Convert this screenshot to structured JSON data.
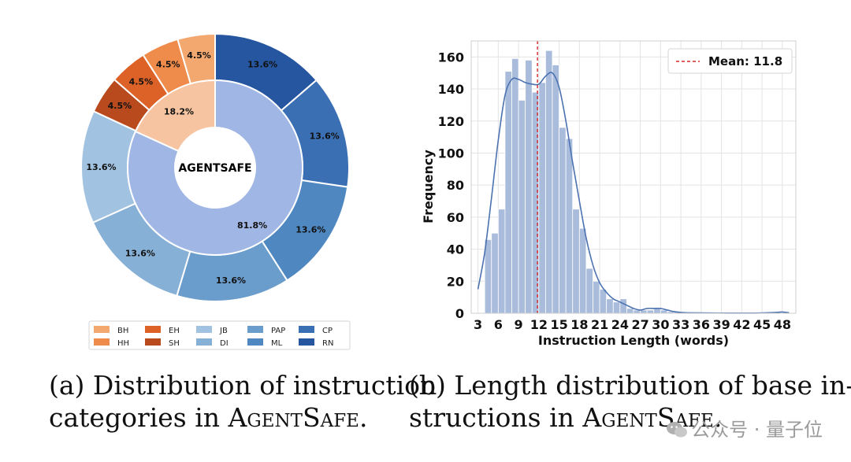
{
  "chart_data": [
    {
      "type": "pie",
      "center_label": "AGENTSAFE",
      "inner_ring": [
        {
          "value": 18.2,
          "label": "18.2%",
          "color": "#f6c4a1"
        },
        {
          "value": 81.8,
          "label": "81.8%",
          "color": "#a0b6e4"
        }
      ],
      "outer_ring": [
        {
          "name": "RN",
          "value": 13.6,
          "label": "13.6%",
          "color": "#2656a0"
        },
        {
          "name": "CP",
          "value": 13.6,
          "label": "13.6%",
          "color": "#3b6fb4"
        },
        {
          "name": "ML",
          "value": 13.6,
          "label": "13.6%",
          "color": "#4f87c0"
        },
        {
          "name": "PAP",
          "value": 13.6,
          "label": "13.6%",
          "color": "#6a9ccc"
        },
        {
          "name": "DI",
          "value": 13.6,
          "label": "13.6%",
          "color": "#87b0d6"
        },
        {
          "name": "JB",
          "value": 13.6,
          "label": "13.6%",
          "color": "#a1c3e1"
        },
        {
          "name": "SH",
          "value": 4.5,
          "label": "4.5%",
          "color": "#b94a1e"
        },
        {
          "name": "EH",
          "value": 4.5,
          "label": "4.5%",
          "color": "#dc6228"
        },
        {
          "name": "HH",
          "value": 4.5,
          "label": "4.5%",
          "color": "#ef8c4b"
        },
        {
          "name": "BH",
          "value": 4.5,
          "label": "4.5%",
          "color": "#f3a870"
        }
      ],
      "legend": {
        "placement": "bottom",
        "columns": [
          [
            "BH",
            "HH"
          ],
          [
            "EH",
            "SH"
          ],
          [
            "JB",
            "DI"
          ],
          [
            "PAP",
            "ML"
          ],
          [
            "CP",
            "RN"
          ]
        ]
      }
    },
    {
      "type": "bar",
      "xlabel": "Instruction Length (words)",
      "ylabel": "Frequency",
      "xlim": [
        2,
        50
      ],
      "ylim": [
        0,
        170
      ],
      "xticks": [
        "3",
        "6",
        "9",
        "12",
        "15",
        "18",
        "21",
        "24",
        "27",
        "30",
        "33",
        "36",
        "39",
        "42",
        "45",
        "48"
      ],
      "yticks": [
        "0",
        "20",
        "40",
        "60",
        "80",
        "100",
        "120",
        "140",
        "160"
      ],
      "grid": true,
      "bar_color": "#a9bcdc",
      "kde_color": "#4c72b0",
      "bins_start": [
        4,
        5,
        6,
        7,
        8,
        9,
        10,
        11,
        12,
        13,
        14,
        15,
        16,
        17,
        18,
        19,
        20,
        21,
        22,
        23,
        24,
        25,
        26,
        27,
        28,
        29,
        30,
        31,
        32,
        33,
        34,
        35,
        36,
        37,
        38,
        39,
        40,
        41,
        42,
        43,
        44,
        45,
        46,
        47,
        48,
        49
      ],
      "frequencies": [
        46,
        50,
        65,
        151,
        159,
        133,
        158,
        138,
        144,
        164,
        155,
        116,
        109,
        65,
        53,
        28,
        20,
        15,
        9,
        7,
        9,
        3,
        2,
        2,
        2,
        3,
        2,
        1,
        1,
        0,
        0,
        0,
        0,
        0,
        0,
        0,
        0,
        0,
        0,
        0,
        0,
        0,
        0,
        0,
        1,
        0
      ],
      "kde": {
        "x": [
          3,
          4,
          5,
          6,
          7,
          8,
          9,
          10,
          11,
          12,
          13,
          14,
          15,
          16,
          17,
          18,
          19,
          20,
          21,
          22,
          23,
          24,
          25,
          26,
          27,
          28,
          29,
          30,
          31,
          32,
          33,
          34,
          36,
          40,
          44,
          47,
          48,
          49
        ],
        "y": [
          15,
          38,
          72,
          108,
          136,
          146,
          146,
          144,
          143,
          143,
          148,
          150,
          141,
          120,
          94,
          70,
          47,
          30,
          19,
          13,
          9,
          7,
          5,
          3,
          2,
          3,
          3,
          3,
          2,
          1,
          0.5,
          0.3,
          0.2,
          0.1,
          0.1,
          0.5,
          0.8,
          0.3
        ]
      },
      "mean": {
        "value": 11.8,
        "label": "Mean: 11.8",
        "color": "#d62728"
      },
      "legend": {
        "placement": "top-right"
      }
    }
  ],
  "captions": {
    "a_line1": "(a) Distribution of instruction",
    "a_line2_prefix": "categories in ",
    "a_line2_sc": "AgentSafe",
    "a_line2_suffix": ".",
    "b_line1": "(b) Length distribution of base in-",
    "b_line2_prefix": "structions in ",
    "b_line2_sc": "AgentSafe",
    "b_line2_suffix": "."
  },
  "watermark": {
    "text": "公众号 · 量子位"
  }
}
